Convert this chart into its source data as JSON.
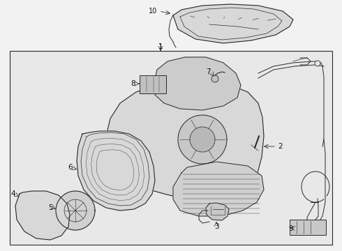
{
  "bg_color": "#f2f2f2",
  "box_bg": "#e8e8e8",
  "line_color": "#2a2a2a",
  "text_color": "#111111",
  "fig_width": 4.9,
  "fig_height": 3.6,
  "dpi": 100
}
